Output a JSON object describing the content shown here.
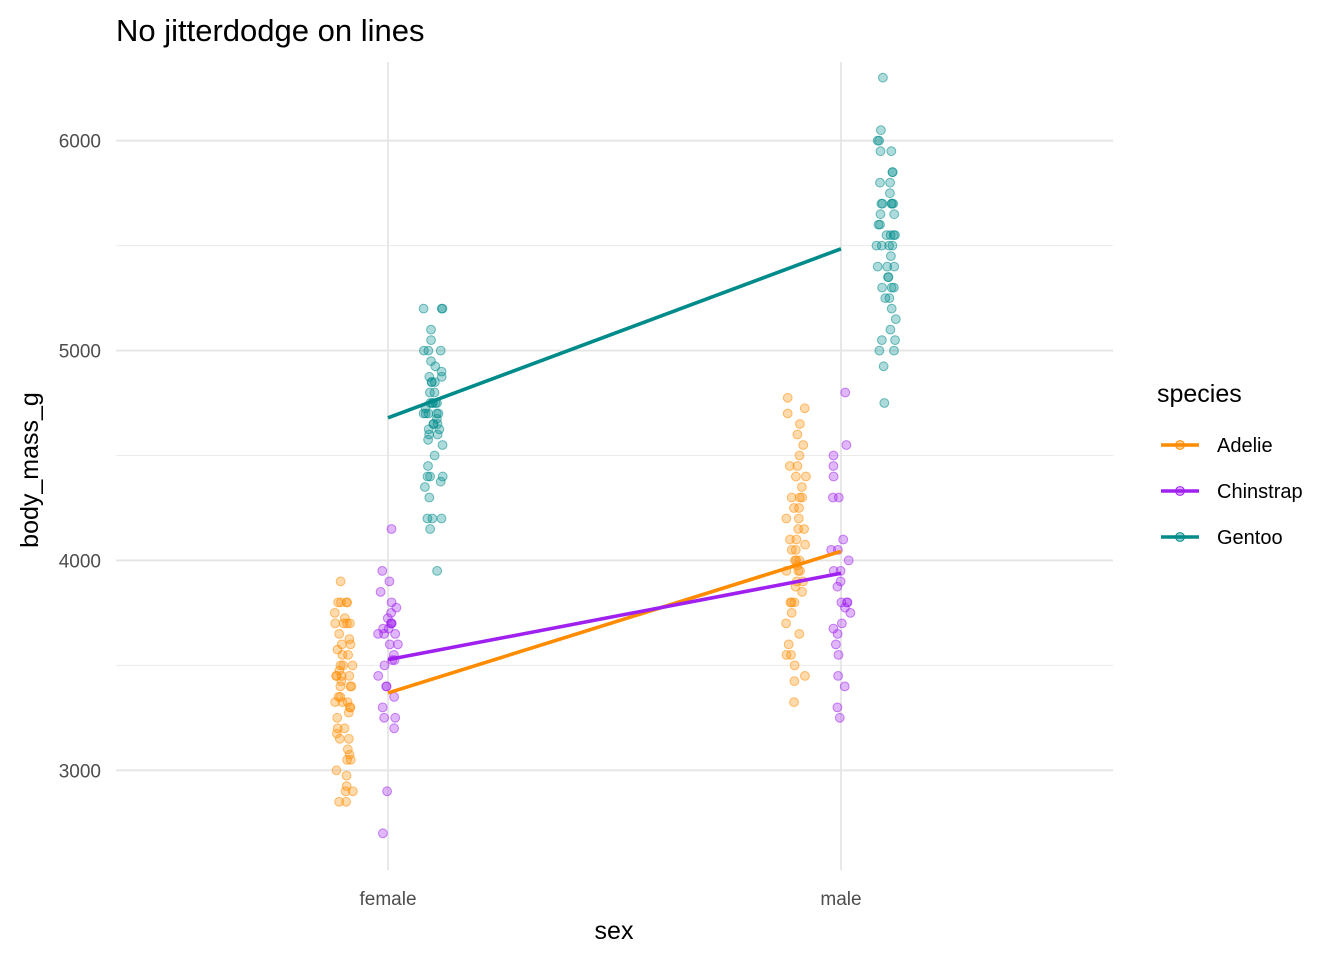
{
  "chart_data": {
    "type": "scatter",
    "title": "No jitterdodge on lines",
    "xlabel": "sex",
    "ylabel": "body_mass_g",
    "categories": [
      "female",
      "male"
    ],
    "ylim": [
      2525,
      6375
    ],
    "yticks": [
      3000,
      4000,
      5000,
      6000
    ],
    "grid": true,
    "legend": {
      "title": "species",
      "position": "right"
    },
    "series": [
      {
        "name": "Adelie",
        "color": "#FF8C00",
        "line": [
          3368.8,
          4043.5
        ],
        "points": {
          "female": [
            2850,
            2850,
            2900,
            2900,
            2925,
            2975,
            3000,
            3050,
            3050,
            3075,
            3100,
            3150,
            3150,
            3175,
            3200,
            3200,
            3250,
            3275,
            3300,
            3300,
            3325,
            3325,
            3325,
            3350,
            3350,
            3400,
            3400,
            3400,
            3425,
            3450,
            3450,
            3450,
            3450,
            3475,
            3500,
            3500,
            3500,
            3550,
            3550,
            3575,
            3600,
            3600,
            3625,
            3650,
            3700,
            3700,
            3700,
            3700,
            3725,
            3750,
            3800,
            3800,
            3800,
            3800,
            3900
          ],
          "male": [
            3325,
            3425,
            3450,
            3500,
            3550,
            3550,
            3600,
            3650,
            3700,
            3750,
            3800,
            3800,
            3800,
            3850,
            3875,
            3900,
            3900,
            3950,
            3950,
            3950,
            3975,
            4000,
            4000,
            4000,
            4050,
            4050,
            4075,
            4100,
            4100,
            4150,
            4150,
            4200,
            4200,
            4250,
            4250,
            4300,
            4300,
            4300,
            4350,
            4400,
            4400,
            4450,
            4450,
            4500,
            4550,
            4600,
            4650,
            4700,
            4725,
            4775
          ]
        }
      },
      {
        "name": "Chinstrap",
        "color": "#A020F0",
        "line": [
          3527.2,
          3939.0
        ],
        "points": {
          "female": [
            2700,
            2900,
            3200,
            3250,
            3250,
            3300,
            3350,
            3400,
            3400,
            3450,
            3500,
            3525,
            3525,
            3550,
            3600,
            3600,
            3650,
            3650,
            3650,
            3675,
            3675,
            3700,
            3700,
            3700,
            3725,
            3750,
            3775,
            3800,
            3850,
            3900,
            3950,
            4150
          ],
          "male": [
            3250,
            3300,
            3400,
            3450,
            3550,
            3600,
            3650,
            3675,
            3700,
            3750,
            3775,
            3800,
            3800,
            3800,
            3875,
            3900,
            3950,
            3950,
            4000,
            4050,
            4050,
            4100,
            4300,
            4300,
            4400,
            4450,
            4500,
            4550,
            4800
          ]
        }
      },
      {
        "name": "Gentoo",
        "color": "#008B8B",
        "line": [
          4679.7,
          5484.8
        ],
        "points": {
          "female": [
            3950,
            4150,
            4200,
            4200,
            4200,
            4300,
            4350,
            4375,
            4400,
            4400,
            4400,
            4450,
            4500,
            4550,
            4575,
            4600,
            4600,
            4625,
            4625,
            4650,
            4650,
            4650,
            4675,
            4700,
            4700,
            4700,
            4700,
            4700,
            4725,
            4750,
            4750,
            4750,
            4750,
            4750,
            4800,
            4800,
            4850,
            4850,
            4850,
            4875,
            4875,
            4900,
            4925,
            4950,
            5000,
            5000,
            5000,
            5050,
            5100,
            5200,
            5200,
            5200
          ],
          "male": [
            4750,
            4925,
            5000,
            5000,
            5050,
            5050,
            5100,
            5150,
            5200,
            5250,
            5250,
            5300,
            5300,
            5300,
            5350,
            5350,
            5400,
            5400,
            5400,
            5450,
            5500,
            5500,
            5500,
            5500,
            5550,
            5550,
            5550,
            5550,
            5600,
            5600,
            5650,
            5650,
            5700,
            5700,
            5700,
            5700,
            5700,
            5750,
            5800,
            5800,
            5850,
            5850,
            5950,
            5950,
            6000,
            6000,
            6050,
            6300
          ]
        }
      }
    ]
  }
}
